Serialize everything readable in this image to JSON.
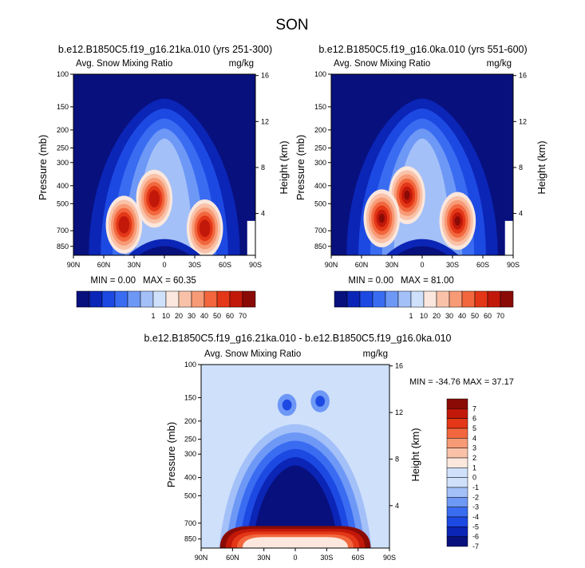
{
  "figure": {
    "title": "SON"
  },
  "colors": {
    "scale": [
      "#08107e",
      "#0b25b6",
      "#1d49e3",
      "#3a6cf2",
      "#6e98f6",
      "#a3c0f8",
      "#cfe0fb",
      "#fbe7dd",
      "#f9c2a8",
      "#f79a76",
      "#f2673e",
      "#e33717",
      "#c2180a",
      "#8a0b06"
    ],
    "plot_background": "#08107e",
    "diff_background": "#cfe0fb"
  },
  "chart_data": [
    {
      "type": "heatmap",
      "title": "b.e12.B1850C5.f19_g16.21ka.010 (yrs 251-300)",
      "variable": "Avg. Snow Mixing Ratio",
      "units": "mg/kg",
      "ylabel": "Pressure (mb)",
      "y2label": "Height (km)",
      "x_ticks": [
        "90N",
        "60N",
        "30N",
        "0",
        "30S",
        "60S",
        "90S"
      ],
      "y_ticks": [
        "100",
        "150",
        "200",
        "250",
        "300",
        "400",
        "500",
        "700",
        "850"
      ],
      "y2_ticks": [
        "16",
        "12",
        "8",
        "4"
      ],
      "min_label": "MIN =   0.00",
      "max_label": "MAX =  60.35",
      "levels": [
        1,
        10,
        20,
        30,
        40,
        50,
        60,
        70
      ],
      "field": {
        "dome_peak_levels": 5,
        "max": 60.35,
        "maxima": [
          {
            "lat": 40,
            "p": 650
          },
          {
            "lat": 10,
            "p": 470
          },
          {
            "lat": -40,
            "p": 680
          }
        ]
      }
    },
    {
      "type": "heatmap",
      "title": "b.e12.B1850C5.f19_g16.0ka.010 (yrs 551-600)",
      "variable": "Avg. Snow Mixing Ratio",
      "units": "mg/kg",
      "ylabel": "Pressure (mb)",
      "y2label": "Height (km)",
      "x_ticks": [
        "90N",
        "60N",
        "30N",
        "0",
        "30S",
        "60S",
        "90S"
      ],
      "y_ticks": [
        "100",
        "150",
        "200",
        "250",
        "300",
        "400",
        "500",
        "700",
        "850"
      ],
      "y2_ticks": [
        "16",
        "12",
        "8",
        "4"
      ],
      "min_label": "MIN =   0.00",
      "max_label": "MAX =  81.00",
      "levels": [
        1,
        10,
        20,
        30,
        40,
        50,
        60,
        70
      ],
      "field": {
        "dome_peak_levels": 5,
        "max": 81.0,
        "maxima": [
          {
            "lat": 15,
            "p": 450
          },
          {
            "lat": 40,
            "p": 600
          },
          {
            "lat": -35,
            "p": 620
          }
        ]
      }
    },
    {
      "type": "heatmap",
      "title": "b.e12.B1850C5.f19_g16.21ka.010 - b.e12.B1850C5.f19_g16.0ka.010",
      "variable": "Avg. Snow Mixing Ratio",
      "units": "mg/kg",
      "ylabel": "Pressure (mb)",
      "y2label": "Height (km)",
      "x_ticks": [
        "90N",
        "60N",
        "30N",
        "0",
        "30S",
        "60S",
        "90S"
      ],
      "y_ticks": [
        "100",
        "150",
        "200",
        "250",
        "300",
        "400",
        "500",
        "700",
        "850"
      ],
      "y2_ticks": [
        "16",
        "12",
        "8",
        "4"
      ],
      "stats_label": "MIN = -34.76  MAX =  37.17",
      "levels": [
        -7,
        -6,
        -5,
        -4,
        -3,
        -2,
        -1,
        0,
        1,
        2,
        3,
        4,
        5,
        6,
        7
      ],
      "field": {
        "min": -34.76,
        "max": 37.17
      }
    }
  ]
}
